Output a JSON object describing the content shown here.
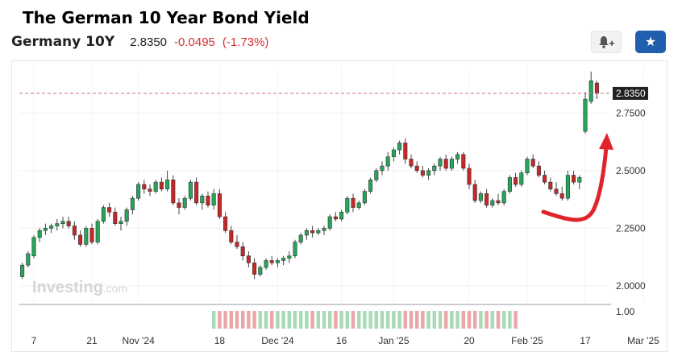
{
  "page_title": "The German 10 Year Bond Yield",
  "instrument": {
    "name": "Germany 10Y",
    "price": "2.8350",
    "change": "-0.0495",
    "change_pct": "(-1.73%)"
  },
  "icons": {
    "alert": "bell-plus-icon",
    "favorite": "star-icon"
  },
  "watermark": {
    "main": "Investing",
    "suffix": ".com"
  },
  "colors": {
    "up": "#26a65b",
    "down": "#c62828",
    "accent": "#1f5fad",
    "annotation": "#e0242b",
    "price_line": "#c87070"
  },
  "chart_data": {
    "type": "candlestick",
    "current_price_label": "2.8350",
    "current_price": 2.835,
    "y_ticks": [
      "2.7500",
      "2.5000",
      "2.2500",
      "2.0000"
    ],
    "y_tick_values": [
      2.75,
      2.5,
      2.25,
      2.0
    ],
    "ylim": [
      1.93,
      2.95
    ],
    "x_ticks": [
      "7",
      "21",
      "Nov '24",
      "18",
      "Dec '24",
      "16",
      "Jan '25",
      "20",
      "Feb '25",
      "17",
      "Mar '25"
    ],
    "x_tick_index": [
      2,
      12,
      20,
      34,
      44,
      55,
      64,
      77,
      87,
      97,
      107
    ],
    "volume_axis_label": "1.00",
    "volume_bars_start_index": 33,
    "volume_bars_end_index": 85,
    "grid": true,
    "annotation": "red-curved-arrow",
    "candles": [
      [
        2.04,
        2.1,
        2.03,
        2.09
      ],
      [
        2.09,
        2.15,
        2.08,
        2.14
      ],
      [
        2.13,
        2.22,
        2.12,
        2.21
      ],
      [
        2.21,
        2.25,
        2.19,
        2.24
      ],
      [
        2.24,
        2.27,
        2.22,
        2.25
      ],
      [
        2.25,
        2.27,
        2.23,
        2.26
      ],
      [
        2.26,
        2.29,
        2.24,
        2.27
      ],
      [
        2.27,
        2.3,
        2.25,
        2.28
      ],
      [
        2.28,
        2.3,
        2.25,
        2.26
      ],
      [
        2.26,
        2.28,
        2.2,
        2.22
      ],
      [
        2.22,
        2.24,
        2.17,
        2.18
      ],
      [
        2.18,
        2.26,
        2.17,
        2.25
      ],
      [
        2.25,
        2.27,
        2.18,
        2.19
      ],
      [
        2.19,
        2.29,
        2.18,
        2.28
      ],
      [
        2.28,
        2.35,
        2.27,
        2.34
      ],
      [
        2.34,
        2.36,
        2.3,
        2.32
      ],
      [
        2.32,
        2.34,
        2.26,
        2.27
      ],
      [
        2.27,
        2.3,
        2.24,
        2.28
      ],
      [
        2.28,
        2.34,
        2.26,
        2.33
      ],
      [
        2.33,
        2.39,
        2.31,
        2.38
      ],
      [
        2.38,
        2.45,
        2.37,
        2.44
      ],
      [
        2.44,
        2.46,
        2.4,
        2.42
      ],
      [
        2.42,
        2.44,
        2.39,
        2.41
      ],
      [
        2.41,
        2.46,
        2.4,
        2.45
      ],
      [
        2.45,
        2.47,
        2.41,
        2.42
      ],
      [
        2.42,
        2.5,
        2.41,
        2.46
      ],
      [
        2.46,
        2.48,
        2.35,
        2.36
      ],
      [
        2.36,
        2.38,
        2.31,
        2.34
      ],
      [
        2.34,
        2.39,
        2.33,
        2.38
      ],
      [
        2.38,
        2.46,
        2.37,
        2.45
      ],
      [
        2.45,
        2.47,
        2.35,
        2.36
      ],
      [
        2.36,
        2.4,
        2.33,
        2.39
      ],
      [
        2.39,
        2.41,
        2.34,
        2.35
      ],
      [
        2.35,
        2.42,
        2.33,
        2.4
      ],
      [
        2.4,
        2.42,
        2.29,
        2.3
      ],
      [
        2.3,
        2.32,
        2.23,
        2.24
      ],
      [
        2.24,
        2.26,
        2.18,
        2.19
      ],
      [
        2.19,
        2.22,
        2.16,
        2.17
      ],
      [
        2.17,
        2.19,
        2.11,
        2.13
      ],
      [
        2.13,
        2.15,
        2.08,
        2.1
      ],
      [
        2.1,
        2.12,
        2.03,
        2.05
      ],
      [
        2.05,
        2.09,
        2.04,
        2.08
      ],
      [
        2.08,
        2.12,
        2.07,
        2.11
      ],
      [
        2.11,
        2.13,
        2.09,
        2.1
      ],
      [
        2.1,
        2.12,
        2.08,
        2.11
      ],
      [
        2.11,
        2.13,
        2.09,
        2.12
      ],
      [
        2.12,
        2.15,
        2.1,
        2.13
      ],
      [
        2.13,
        2.2,
        2.12,
        2.19
      ],
      [
        2.19,
        2.23,
        2.18,
        2.22
      ],
      [
        2.22,
        2.25,
        2.2,
        2.24
      ],
      [
        2.24,
        2.26,
        2.21,
        2.23
      ],
      [
        2.23,
        2.25,
        2.22,
        2.24
      ],
      [
        2.24,
        2.26,
        2.22,
        2.25
      ],
      [
        2.25,
        2.31,
        2.24,
        2.3
      ],
      [
        2.3,
        2.32,
        2.28,
        2.29
      ],
      [
        2.29,
        2.33,
        2.28,
        2.32
      ],
      [
        2.32,
        2.39,
        2.31,
        2.38
      ],
      [
        2.38,
        2.4,
        2.32,
        2.34
      ],
      [
        2.34,
        2.37,
        2.33,
        2.36
      ],
      [
        2.36,
        2.42,
        2.35,
        2.41
      ],
      [
        2.41,
        2.47,
        2.4,
        2.46
      ],
      [
        2.46,
        2.51,
        2.45,
        2.5
      ],
      [
        2.5,
        2.54,
        2.48,
        2.52
      ],
      [
        2.52,
        2.58,
        2.5,
        2.56
      ],
      [
        2.56,
        2.6,
        2.54,
        2.59
      ],
      [
        2.59,
        2.63,
        2.57,
        2.62
      ],
      [
        2.62,
        2.64,
        2.53,
        2.55
      ],
      [
        2.55,
        2.57,
        2.51,
        2.52
      ],
      [
        2.52,
        2.54,
        2.49,
        2.5
      ],
      [
        2.5,
        2.52,
        2.47,
        2.48
      ],
      [
        2.48,
        2.51,
        2.46,
        2.5
      ],
      [
        2.5,
        2.53,
        2.48,
        2.52
      ],
      [
        2.52,
        2.56,
        2.5,
        2.55
      ],
      [
        2.55,
        2.57,
        2.5,
        2.51
      ],
      [
        2.51,
        2.56,
        2.5,
        2.55
      ],
      [
        2.55,
        2.58,
        2.53,
        2.57
      ],
      [
        2.57,
        2.58,
        2.5,
        2.51
      ],
      [
        2.51,
        2.53,
        2.42,
        2.44
      ],
      [
        2.44,
        2.46,
        2.36,
        2.37
      ],
      [
        2.37,
        2.41,
        2.36,
        2.4
      ],
      [
        2.4,
        2.42,
        2.34,
        2.35
      ],
      [
        2.35,
        2.38,
        2.34,
        2.37
      ],
      [
        2.37,
        2.4,
        2.35,
        2.36
      ],
      [
        2.36,
        2.42,
        2.35,
        2.41
      ],
      [
        2.41,
        2.48,
        2.4,
        2.47
      ],
      [
        2.47,
        2.49,
        2.43,
        2.44
      ],
      [
        2.44,
        2.5,
        2.43,
        2.49
      ],
      [
        2.49,
        2.56,
        2.48,
        2.55
      ],
      [
        2.55,
        2.57,
        2.51,
        2.52
      ],
      [
        2.52,
        2.54,
        2.47,
        2.48
      ],
      [
        2.48,
        2.5,
        2.44,
        2.45
      ],
      [
        2.45,
        2.47,
        2.41,
        2.42
      ],
      [
        2.42,
        2.45,
        2.39,
        2.4
      ],
      [
        2.4,
        2.43,
        2.37,
        2.38
      ],
      [
        2.38,
        2.5,
        2.37,
        2.48
      ],
      [
        2.48,
        2.5,
        2.44,
        2.45
      ],
      [
        2.45,
        2.48,
        2.42,
        2.47
      ],
      [
        2.67,
        2.84,
        2.66,
        2.81
      ],
      [
        2.8,
        2.93,
        2.79,
        2.89
      ],
      [
        2.88,
        2.89,
        2.81,
        2.835
      ]
    ]
  }
}
